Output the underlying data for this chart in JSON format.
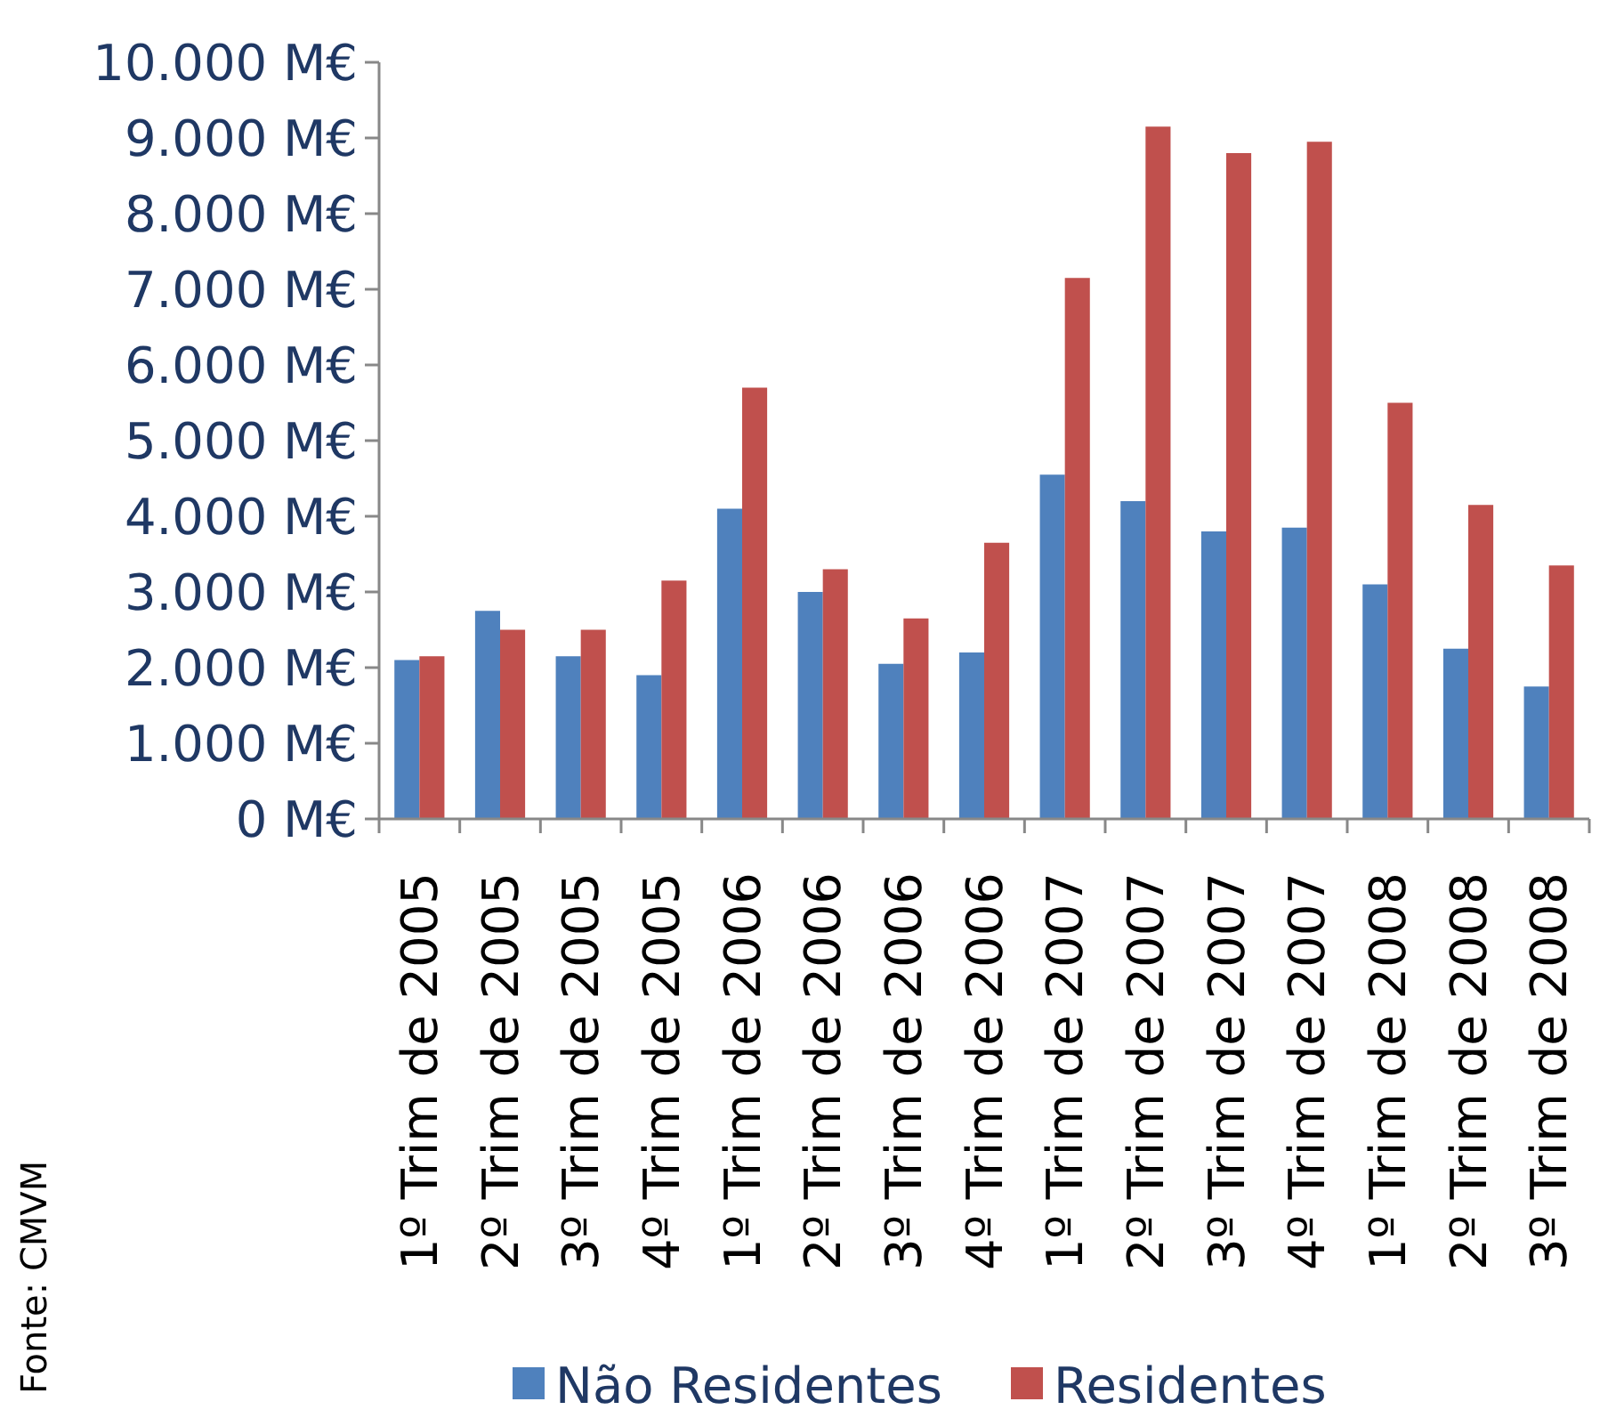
{
  "chart_data": {
    "type": "bar",
    "categories": [
      "1º Trim de 2005",
      "2º Trim de 2005",
      "3º Trim de 2005",
      "4º Trim de 2005",
      "1º Trim de 2006",
      "2º Trim de 2006",
      "3º Trim de 2006",
      "4º Trim de 2006",
      "1º Trim de 2007",
      "2º Trim de 2007",
      "3º Trim de 2007",
      "4º Trim de 2007",
      "1º Trim de 2008",
      "2º Trim de 2008",
      "3º Trim de 2008"
    ],
    "series": [
      {
        "name": "Não Residentes",
        "color": "#4f81bd",
        "values": [
          2100,
          2750,
          2150,
          1900,
          4100,
          3000,
          2050,
          2200,
          4550,
          4200,
          3800,
          3850,
          3100,
          2250,
          1750
        ]
      },
      {
        "name": "Residentes",
        "color": "#c0504d",
        "values": [
          2150,
          2500,
          2500,
          3150,
          5700,
          3300,
          2650,
          3650,
          7150,
          9150,
          8800,
          8950,
          5500,
          4150,
          3350
        ]
      }
    ],
    "ylim": [
      0,
      10000
    ],
    "yticks": [
      {
        "value": 0,
        "label": "0 M€"
      },
      {
        "value": 1000,
        "label": "1.000 M€"
      },
      {
        "value": 2000,
        "label": "2.000 M€"
      },
      {
        "value": 3000,
        "label": "3.000 M€"
      },
      {
        "value": 4000,
        "label": "4.000 M€"
      },
      {
        "value": 5000,
        "label": "5.000 M€"
      },
      {
        "value": 6000,
        "label": "6.000 M€"
      },
      {
        "value": 7000,
        "label": "7.000 M€"
      },
      {
        "value": 8000,
        "label": "8.000 M€"
      },
      {
        "value": 9000,
        "label": "9.000 M€"
      },
      {
        "value": 10000,
        "label": "10.000 M€"
      }
    ],
    "legend": "bottom",
    "annotations": [
      "Fonte: CMVM"
    ]
  }
}
